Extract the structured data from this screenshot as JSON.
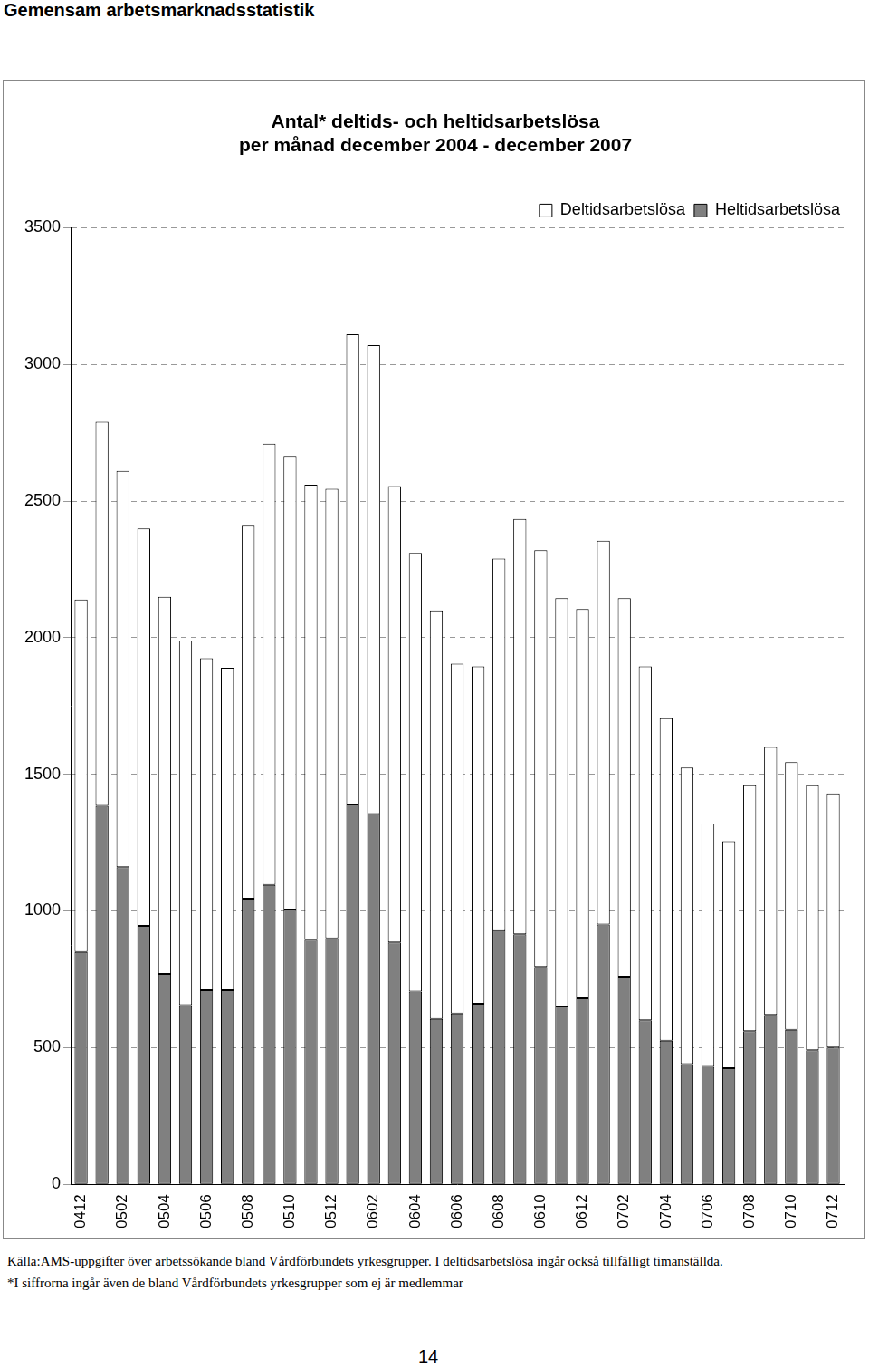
{
  "header": "Gemensam arbetsmarknadsstatistik",
  "chart_data": {
    "type": "bar",
    "title": [
      "Antal* deltids- och heltidsarbetslösa",
      "per månad december 2004 - december 2007"
    ],
    "categories": [
      "0412",
      null,
      "0502",
      null,
      "0504",
      null,
      "0506",
      null,
      "0508",
      null,
      "0510",
      null,
      "0512",
      null,
      "0602",
      null,
      "0604",
      null,
      "0606",
      null,
      "0608",
      null,
      "0610",
      null,
      "0612",
      null,
      "0702",
      null,
      "0704",
      null,
      "0706",
      null,
      "0708",
      null,
      "0710",
      null,
      "0712"
    ],
    "series": [
      {
        "name": "Deltidsarbetslösa",
        "color": "#ffffff",
        "values": [
          1290,
          1405,
          1450,
          1455,
          1380,
          1335,
          1215,
          1180,
          1365,
          1615,
          1660,
          1665,
          1645,
          1720,
          1715,
          1670,
          1605,
          1495,
          1280,
          1235,
          1360,
          1520,
          1525,
          1495,
          1425,
          1405,
          1385,
          1295,
          1180,
          1085,
          890,
          830,
          900,
          980,
          980,
          970,
          930
        ]
      },
      {
        "name": "Heltidsarbetslösa",
        "color": "#808080",
        "values": [
          850,
          1385,
          1160,
          945,
          770,
          655,
          710,
          710,
          1045,
          1095,
          1005,
          895,
          900,
          1390,
          1355,
          885,
          705,
          605,
          625,
          660,
          930,
          915,
          795,
          650,
          680,
          950,
          760,
          600,
          525,
          440,
          430,
          425,
          560,
          620,
          565,
          490,
          500
        ]
      }
    ],
    "stacked": true,
    "ylim": [
      0,
      3500
    ],
    "yticks": [
      0,
      500,
      1000,
      1500,
      2000,
      2500,
      3000,
      3500
    ],
    "grid": true,
    "legend": "upper right"
  },
  "notes": [
    "Källa:AMS-uppgifter över arbetssökande bland Vårdförbundets yrkesgrupper. I deltidsarbetslösa ingår också tillfälligt timanställda.",
    "*I siffrorna ingår även de bland Vårdförbundets yrkesgrupper som ej är medlemmar"
  ],
  "page_number": 14
}
